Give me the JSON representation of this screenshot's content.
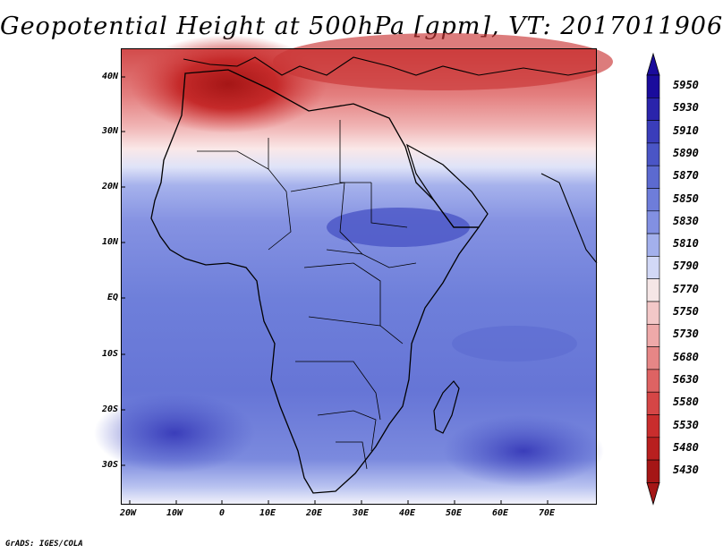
{
  "title": "Geopotential Height at 500hPa [gpm], VT: 2017011906",
  "credit": "GrADS: IGES/COLA",
  "map": {
    "latitude_labels": [
      "40N",
      "30N",
      "20N",
      "10N",
      "EQ",
      "10S",
      "20S",
      "30S"
    ],
    "longitude_labels": [
      "20W",
      "10W",
      "0",
      "10E",
      "20E",
      "30E",
      "40E",
      "50E",
      "60E",
      "70E"
    ]
  },
  "colorbar": {
    "levels": [
      {
        "label": "5950",
        "color": "#1a0c9c"
      },
      {
        "label": "5930",
        "color": "#2a24ab"
      },
      {
        "label": "5910",
        "color": "#3a3dba"
      },
      {
        "label": "5890",
        "color": "#4a55c6"
      },
      {
        "label": "5870",
        "color": "#5c6ad0"
      },
      {
        "label": "5850",
        "color": "#6e7dda"
      },
      {
        "label": "5830",
        "color": "#8290e2"
      },
      {
        "label": "5810",
        "color": "#a3b0ec"
      },
      {
        "label": "5790",
        "color": "#d2d8f6"
      },
      {
        "label": "5770",
        "color": "#f5e6e6"
      },
      {
        "label": "5750",
        "color": "#f3c8c8"
      },
      {
        "label": "5730",
        "color": "#eea9a9"
      },
      {
        "label": "5680",
        "color": "#e68686"
      },
      {
        "label": "5630",
        "color": "#de6363"
      },
      {
        "label": "5580",
        "color": "#d54646"
      },
      {
        "label": "5530",
        "color": "#c92d2d"
      },
      {
        "label": "5480",
        "color": "#b81f1f"
      },
      {
        "label": "5430",
        "color": "#a51616"
      }
    ]
  }
}
